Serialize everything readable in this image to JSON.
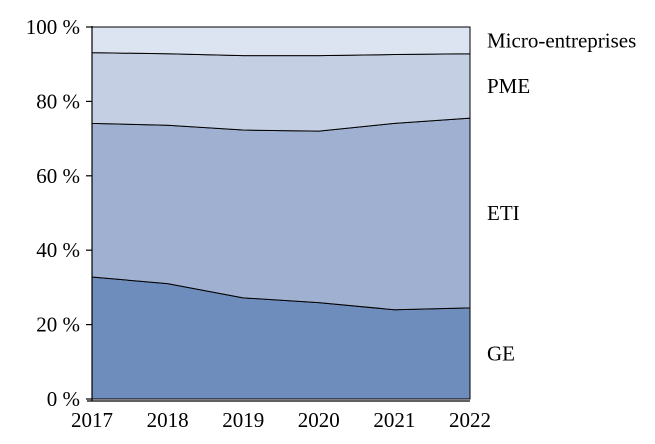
{
  "chart_data": {
    "type": "area",
    "stacked": true,
    "title": "",
    "xlabel": "",
    "ylabel": "",
    "x": [
      2017,
      2018,
      2019,
      2020,
      2021,
      2022
    ],
    "x_tick_labels": [
      "2017",
      "2018",
      "2019",
      "2020",
      "2021",
      "2022"
    ],
    "y_ticks": [
      0,
      20,
      40,
      60,
      80,
      100
    ],
    "y_tick_labels": [
      "0 %",
      "20 %",
      "40 %",
      "60 %",
      "80 %",
      "100 %"
    ],
    "ylim": [
      0,
      100
    ],
    "grid": false,
    "legend_position": "right",
    "series": [
      {
        "name": "GE",
        "values": [
          32.8,
          31.0,
          27.2,
          25.9,
          24.0,
          24.5
        ],
        "color": "#6e8dbc"
      },
      {
        "name": "ETI",
        "values": [
          41.3,
          42.6,
          45.1,
          46.1,
          50.1,
          51.0
        ],
        "color": "#9fb0d0"
      },
      {
        "name": "PME",
        "values": [
          19.0,
          19.2,
          20.0,
          20.3,
          18.5,
          17.3
        ],
        "color": "#c5cfe3"
      },
      {
        "name": "Micro-entreprises",
        "values": [
          6.9,
          7.2,
          7.7,
          7.7,
          7.4,
          7.2
        ],
        "color": "#dde4f1"
      }
    ],
    "cumulative_tops": {
      "GE": [
        32.8,
        31.0,
        27.2,
        25.9,
        24.0,
        24.5
      ],
      "ETI": [
        74.1,
        73.6,
        72.3,
        72.0,
        74.1,
        75.5
      ],
      "PME": [
        93.1,
        92.8,
        92.3,
        92.3,
        92.6,
        92.8
      ],
      "Micro-entreprises": [
        100,
        100,
        100,
        100,
        100,
        100
      ]
    },
    "outline_color": "#000000",
    "axis_color": "#000000",
    "background_color": "#ffffff"
  }
}
